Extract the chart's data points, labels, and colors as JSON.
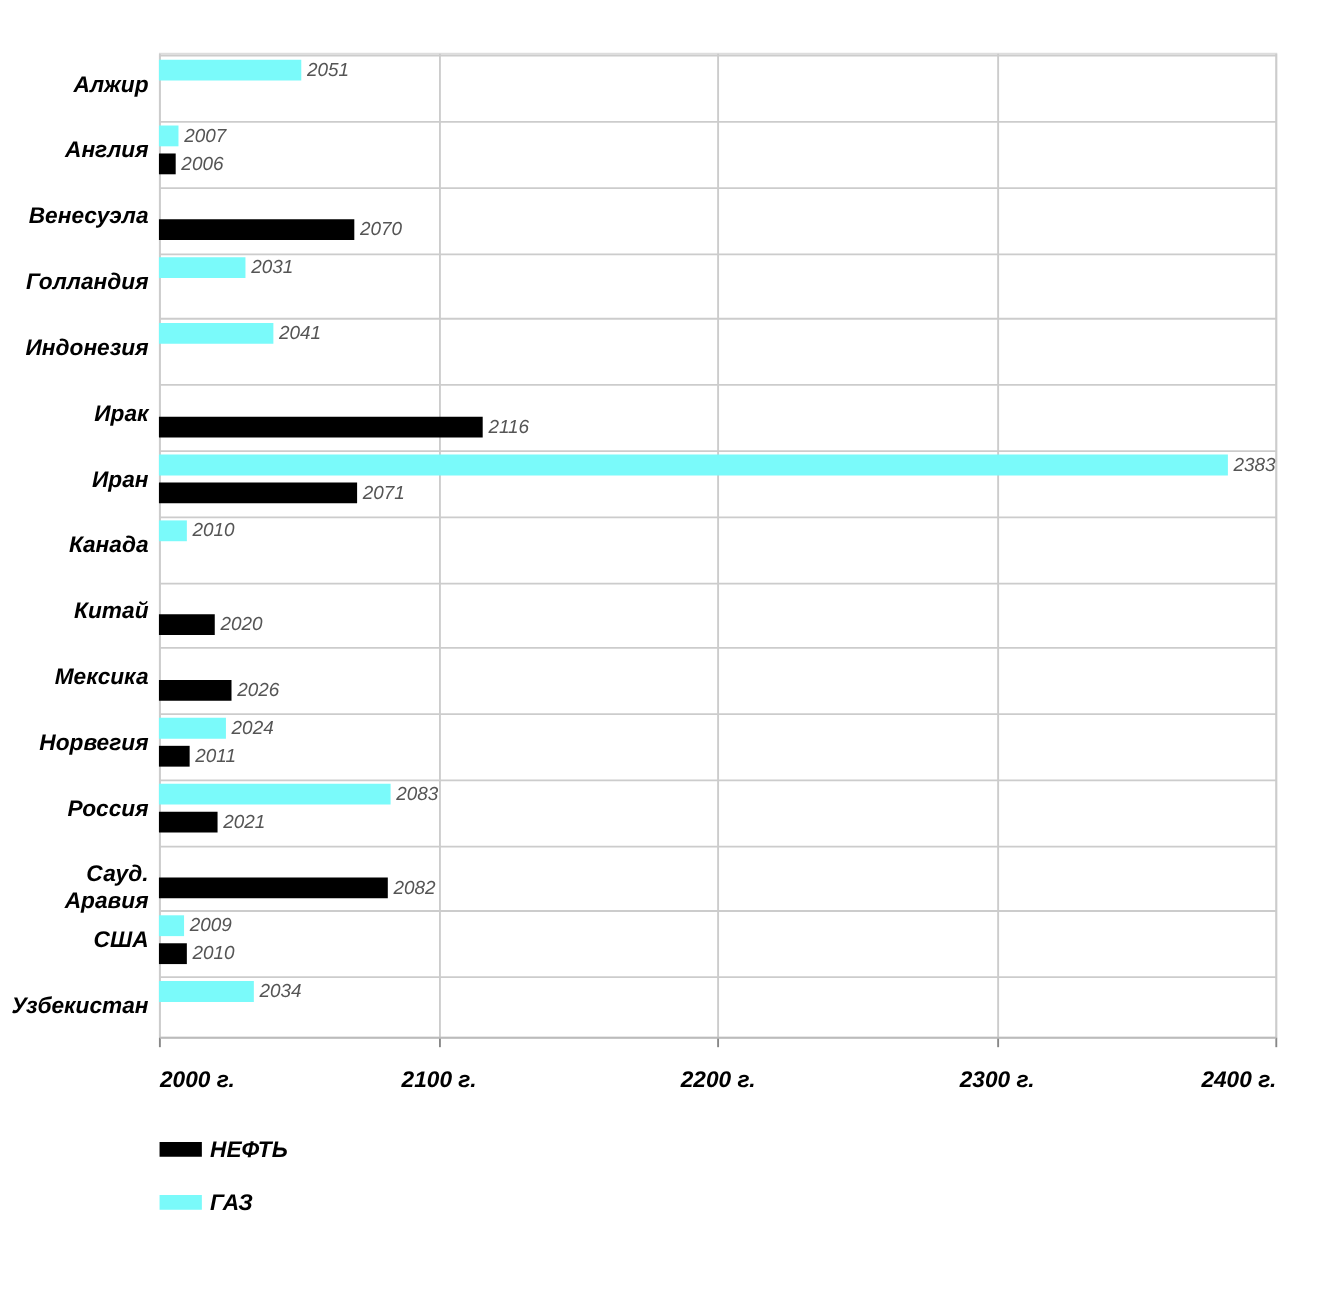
{
  "chart_data": {
    "type": "bar",
    "orientation": "horizontal",
    "categories": [
      "Алжир",
      "Англия",
      "Венесуэла",
      "Голландия",
      "Индонезия",
      "Ирак",
      "Иран",
      "Канада",
      "Китай",
      "Мексика",
      "Норвегия",
      "Россия",
      "Сауд. Аравия",
      "США",
      "Узбекистан"
    ],
    "series": [
      {
        "name": "НЕФТЬ",
        "color": "#000000",
        "values": [
          null,
          2006,
          2070,
          null,
          null,
          2116,
          2071,
          null,
          2020,
          2026,
          2011,
          2021,
          2082,
          2010,
          null
        ]
      },
      {
        "name": "ГАЗ",
        "color": "#7afafa",
        "values": [
          2051,
          2007,
          null,
          2031,
          2041,
          null,
          2383,
          2010,
          null,
          null,
          2024,
          2083,
          null,
          2009,
          2034
        ]
      }
    ],
    "xlim": [
      2000,
      2400
    ],
    "xticks": [
      {
        "value": 2000,
        "label": "2000 г."
      },
      {
        "value": 2100,
        "label": "2100 г."
      },
      {
        "value": 2200,
        "label": "2200 г."
      },
      {
        "value": 2300,
        "label": "2300 г."
      },
      {
        "value": 2400,
        "label": "2400 г."
      }
    ],
    "data_labels": true,
    "grid": true,
    "legend": "bottom left"
  }
}
